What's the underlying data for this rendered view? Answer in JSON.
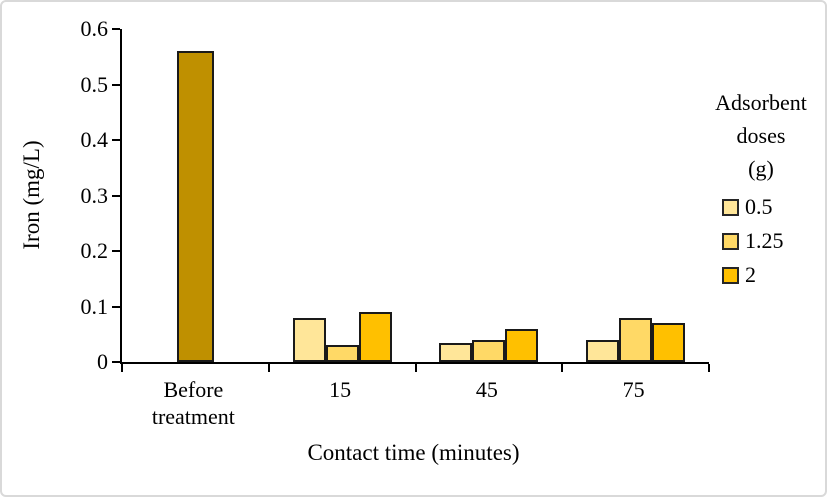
{
  "frame": {
    "background": "#ffffff",
    "border_color": "#d9d9d9"
  },
  "chart_data": {
    "type": "bar",
    "title": "",
    "xlabel": "Contact time (minutes)",
    "ylabel": "Iron (mg/L)",
    "ylim": [
      0,
      0.6
    ],
    "ytick_labels": [
      "0",
      "0.1",
      "0.2",
      "0.3",
      "0.4",
      "0.5",
      "0.6"
    ],
    "grid": false,
    "axis_color": "#000000",
    "bar_border_color": "#1a1a1a",
    "categories": [
      "Before treatment",
      "15",
      "45",
      "75"
    ],
    "series": [
      {
        "name": "Before treatment",
        "in_legend": false,
        "color": "#BF9000",
        "values": [
          0.56,
          null,
          null,
          null
        ]
      },
      {
        "name": "0.5",
        "in_legend": true,
        "color": "#FFE699",
        "values": [
          null,
          0.08,
          0.035,
          0.04
        ]
      },
      {
        "name": "1.25",
        "in_legend": true,
        "color": "#FFD966",
        "values": [
          null,
          0.03,
          0.04,
          0.08
        ]
      },
      {
        "name": "2",
        "in_legend": true,
        "color": "#FFC000",
        "values": [
          null,
          0.09,
          0.06,
          0.07
        ]
      }
    ],
    "legend": {
      "position": "right",
      "title_lines": [
        "Adsorbent",
        "doses",
        "(g)"
      ]
    }
  }
}
